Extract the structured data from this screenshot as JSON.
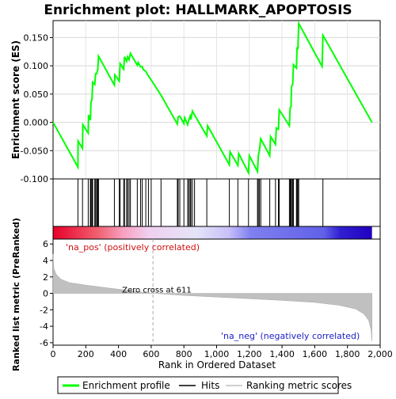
{
  "chart_data": {
    "type": "line",
    "title": "Enrichment plot: HALLMARK_APOPTOSIS",
    "es_panel": {
      "ylabel": "Enrichment score (ES)",
      "ylim": [
        -0.1,
        0.18
      ],
      "yticks": [
        -0.1,
        -0.05,
        0.0,
        0.05,
        0.1,
        0.15
      ],
      "ytick_labels": [
        "-0.100",
        "-0.050",
        "0.000",
        "0.050",
        "0.100",
        "0.150"
      ],
      "series": [
        {
          "name": "Enrichment profile",
          "color": "#00ff00",
          "points": [
            [
              0,
              0.0
            ],
            [
              152,
              -0.079
            ],
            [
              153,
              -0.033
            ],
            [
              180,
              -0.046
            ],
            [
              182,
              -0.004
            ],
            [
              215,
              -0.019
            ],
            [
              217,
              0.013
            ],
            [
              228,
              0.004
            ],
            [
              232,
              0.036
            ],
            [
              238,
              0.04
            ],
            [
              242,
              0.071
            ],
            [
              255,
              0.067
            ],
            [
              260,
              0.086
            ],
            [
              267,
              0.086
            ],
            [
              270,
              0.09
            ],
            [
              273,
              0.092
            ],
            [
              278,
              0.117
            ],
            [
              375,
              0.066
            ],
            [
              378,
              0.084
            ],
            [
              405,
              0.073
            ],
            [
              410,
              0.104
            ],
            [
              432,
              0.094
            ],
            [
              437,
              0.116
            ],
            [
              450,
              0.108
            ],
            [
              456,
              0.116
            ],
            [
              465,
              0.111
            ],
            [
              473,
              0.122
            ],
            [
              515,
              0.101
            ],
            [
              520,
              0.106
            ],
            [
              535,
              0.098
            ],
            [
              545,
              0.099
            ],
            [
              550,
              0.094
            ],
            [
              567,
              0.09
            ],
            [
              583,
              0.082
            ],
            [
              600,
              0.075
            ],
            [
              660,
              0.048
            ],
            [
              760,
              -0.003
            ],
            [
              765,
              0.01
            ],
            [
              775,
              0.011
            ],
            [
              800,
              -0.002
            ],
            [
              805,
              0.008
            ],
            [
              823,
              -0.004
            ],
            [
              830,
              0.004
            ],
            [
              838,
              0.011
            ],
            [
              843,
              0.005
            ],
            [
              852,
              0.02
            ],
            [
              865,
              0.013
            ],
            [
              940,
              -0.024
            ],
            [
              945,
              -0.006
            ],
            [
              1078,
              -0.075
            ],
            [
              1082,
              -0.052
            ],
            [
              1130,
              -0.076
            ],
            [
              1135,
              -0.055
            ],
            [
              1195,
              -0.089
            ],
            [
              1200,
              -0.059
            ],
            [
              1250,
              -0.087
            ],
            [
              1255,
              -0.059
            ],
            [
              1262,
              -0.049
            ],
            [
              1270,
              -0.029
            ],
            [
              1325,
              -0.059
            ],
            [
              1330,
              -0.025
            ],
            [
              1360,
              -0.039
            ],
            [
              1365,
              -0.01
            ],
            [
              1378,
              -0.012
            ],
            [
              1383,
              0.022
            ],
            [
              1445,
              -0.006
            ],
            [
              1450,
              0.026
            ],
            [
              1455,
              0.028
            ],
            [
              1458,
              0.063
            ],
            [
              1465,
              0.067
            ],
            [
              1470,
              0.102
            ],
            [
              1488,
              0.096
            ],
            [
              1492,
              0.133
            ],
            [
              1497,
              0.129
            ],
            [
              1502,
              0.175
            ],
            [
              1645,
              0.099
            ],
            [
              1650,
              0.154
            ],
            [
              1950,
              0.0
            ]
          ]
        }
      ]
    },
    "hits_panel": {
      "legend_label": "Hits",
      "hits": [
        152,
        180,
        215,
        228,
        232,
        238,
        242,
        255,
        260,
        267,
        270,
        273,
        278,
        375,
        405,
        410,
        432,
        437,
        450,
        456,
        465,
        473,
        515,
        535,
        545,
        567,
        583,
        600,
        660,
        760,
        765,
        775,
        800,
        823,
        830,
        838,
        843,
        852,
        865,
        940,
        1078,
        1130,
        1195,
        1250,
        1255,
        1262,
        1270,
        1325,
        1360,
        1378,
        1383,
        1445,
        1450,
        1455,
        1458,
        1465,
        1470,
        1488,
        1492,
        1497,
        1502,
        1650
      ]
    },
    "ranking_panel": {
      "ylabel": "Ranked list metric (PreRanked)",
      "xlabel": "Rank in Ordered Dataset",
      "legend_label": "Ranking metric scores",
      "ylim": [
        -6.3,
        6.6
      ],
      "yticks": [
        -6,
        -4,
        -2,
        0,
        2,
        4,
        6
      ],
      "ytick_labels": [
        "-6",
        "-4",
        "-2",
        "0",
        "2",
        "4",
        "6"
      ],
      "xlim": [
        0,
        2000
      ],
      "xticks": [
        0,
        200,
        400,
        600,
        800,
        1000,
        1200,
        1400,
        1600,
        1800,
        2000
      ],
      "xtick_labels": [
        "0",
        "200",
        "400",
        "600",
        "800",
        "1,000",
        "1,200",
        "1,400",
        "1,600",
        "1,800",
        "2,000"
      ],
      "total": 1950,
      "zero_cross": 611,
      "zero_cross_label": "Zero cross at 611",
      "pos_label": "'na_pos' (positively correlated)",
      "neg_label": "'na_neg' (negatively correlated)",
      "metric_curve": [
        [
          0,
          4.8
        ],
        [
          5,
          3.0
        ],
        [
          20,
          2.3
        ],
        [
          50,
          1.7
        ],
        [
          100,
          1.3
        ],
        [
          200,
          1.0
        ],
        [
          300,
          0.75
        ],
        [
          400,
          0.5
        ],
        [
          500,
          0.25
        ],
        [
          611,
          0.0
        ],
        [
          800,
          -0.25
        ],
        [
          1000,
          -0.45
        ],
        [
          1200,
          -0.65
        ],
        [
          1400,
          -0.85
        ],
        [
          1600,
          -1.1
        ],
        [
          1750,
          -1.45
        ],
        [
          1850,
          -1.9
        ],
        [
          1900,
          -2.5
        ],
        [
          1930,
          -3.3
        ],
        [
          1945,
          -4.5
        ],
        [
          1950,
          -5.8
        ]
      ]
    },
    "legend": {
      "items": [
        {
          "label": "Enrichment profile",
          "color": "#00ff00"
        },
        {
          "label": "Hits",
          "color": "#000000"
        },
        {
          "label": "Ranking metric scores",
          "color": "#c0c0c0"
        }
      ]
    }
  }
}
